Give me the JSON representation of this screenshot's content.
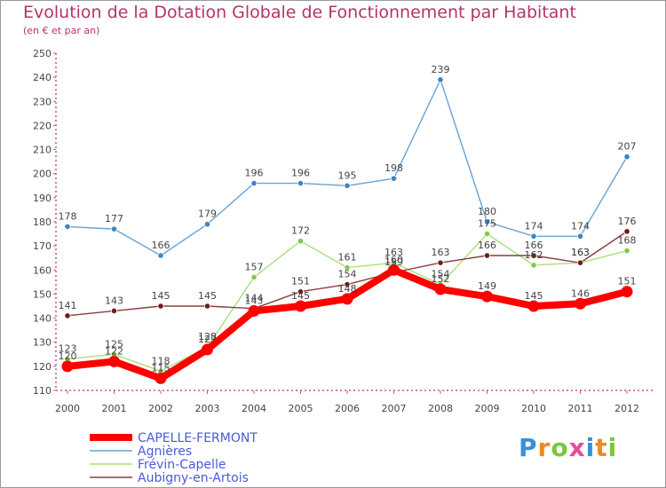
{
  "title": "Evolution de la Dotation Globale de Fonctionnement par Habitant",
  "subtitle": "(en € et par an)",
  "logo_text": "Proxiti",
  "colors": {
    "title": "#b5336a",
    "axis_text": "#444444",
    "legend_text": "#4a5ad8"
  },
  "chart_data": {
    "type": "line",
    "title": "Evolution de la Dotation Globale de Fonctionnement par Habitant",
    "subtitle": "(en € et par an)",
    "xlabel": "",
    "ylabel": "",
    "ylim": [
      110,
      250
    ],
    "yticks": [
      110,
      120,
      130,
      140,
      150,
      160,
      170,
      180,
      190,
      200,
      210,
      220,
      230,
      240,
      250
    ],
    "grid": false,
    "legend_position": "bottom-left",
    "categories": [
      "2000",
      "2001",
      "2002",
      "2003",
      "2004",
      "2005",
      "2006",
      "2007",
      "2008",
      "2009",
      "2010",
      "2011",
      "2012"
    ],
    "series": [
      {
        "name": "CAPELLE-FERMONT",
        "color": "#ff0000",
        "point_color": "#ff0000",
        "bold": true,
        "values": [
          120,
          122,
          115,
          127,
          143,
          145,
          148,
          160,
          152,
          149,
          145,
          146,
          151
        ]
      },
      {
        "name": "Agnières",
        "color": "#6aa2d2",
        "point_color": "#3d84c4",
        "bold": false,
        "values": [
          178,
          177,
          166,
          179,
          196,
          196,
          195,
          198,
          239,
          180,
          174,
          174,
          207
        ]
      },
      {
        "name": "Frévin-Capelle",
        "color": "#a8e07c",
        "point_color": "#7dcc48",
        "bold": false,
        "values": [
          123,
          125,
          118,
          128,
          157,
          172,
          161,
          163,
          154,
          175,
          162,
          163,
          168
        ]
      },
      {
        "name": "Aubigny-en-Artois",
        "color": "#8a3c3c",
        "point_color": "#6e1c1c",
        "bold": false,
        "values": [
          141,
          143,
          145,
          145,
          144,
          151,
          154,
          159,
          163,
          166,
          166,
          163,
          176
        ]
      }
    ]
  }
}
